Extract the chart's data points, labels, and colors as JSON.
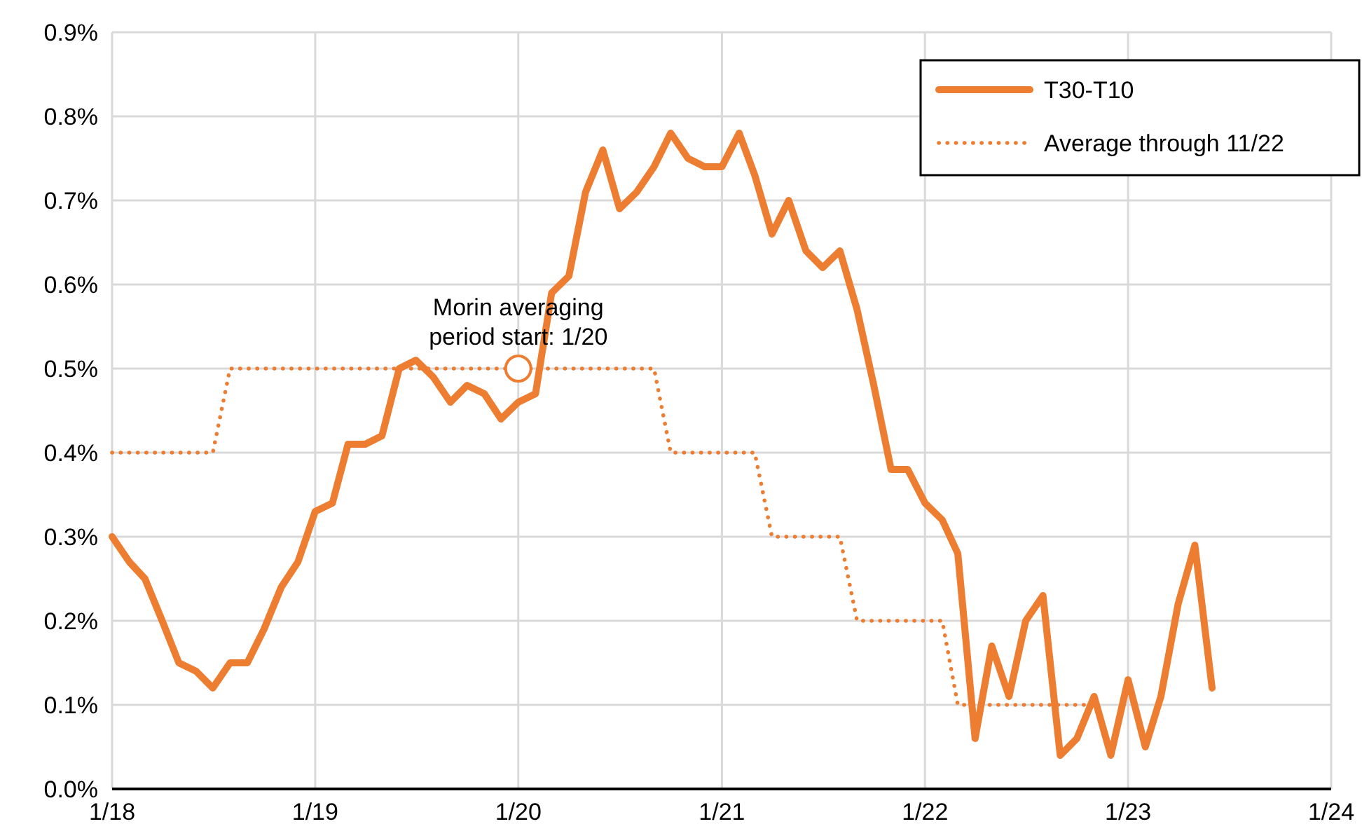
{
  "chart_data": {
    "type": "line",
    "x": [
      "2018-01",
      "2018-02",
      "2018-03",
      "2018-04",
      "2018-05",
      "2018-06",
      "2018-07",
      "2018-08",
      "2018-09",
      "2018-10",
      "2018-11",
      "2018-12",
      "2019-01",
      "2019-02",
      "2019-03",
      "2019-04",
      "2019-05",
      "2019-06",
      "2019-07",
      "2019-08",
      "2019-09",
      "2019-10",
      "2019-11",
      "2019-12",
      "2020-01",
      "2020-02",
      "2020-03",
      "2020-04",
      "2020-05",
      "2020-06",
      "2020-07",
      "2020-08",
      "2020-09",
      "2020-10",
      "2020-11",
      "2020-12",
      "2021-01",
      "2021-02",
      "2021-03",
      "2021-04",
      "2021-05",
      "2021-06",
      "2021-07",
      "2021-08",
      "2021-09",
      "2021-10",
      "2021-11",
      "2021-12",
      "2022-01",
      "2022-02",
      "2022-03",
      "2022-04",
      "2022-05",
      "2022-06",
      "2022-07",
      "2022-08",
      "2022-09",
      "2022-10",
      "2022-11",
      "2022-12",
      "2023-01",
      "2023-02",
      "2023-03",
      "2023-04",
      "2023-05",
      "2023-06"
    ],
    "series": [
      {
        "name": "T30-T10",
        "color": "#ed7d31",
        "line_style": "solid",
        "values": [
          0.3,
          0.27,
          0.25,
          0.2,
          0.15,
          0.14,
          0.12,
          0.15,
          0.15,
          0.19,
          0.24,
          0.27,
          0.33,
          0.34,
          0.41,
          0.41,
          0.42,
          0.5,
          0.51,
          0.49,
          0.46,
          0.48,
          0.47,
          0.44,
          0.46,
          0.47,
          0.59,
          0.61,
          0.71,
          0.76,
          0.69,
          0.71,
          0.74,
          0.78,
          0.75,
          0.74,
          0.74,
          0.78,
          0.73,
          0.66,
          0.7,
          0.64,
          0.62,
          0.64,
          0.57,
          0.48,
          0.38,
          0.38,
          0.34,
          0.32,
          0.28,
          0.06,
          0.17,
          0.11,
          0.2,
          0.23,
          0.04,
          0.06,
          0.11,
          0.04,
          0.13,
          0.05,
          0.11,
          0.22,
          0.29,
          0.12
        ]
      },
      {
        "name": "Average through 11/22",
        "color": "#ed7d31",
        "line_style": "dotted",
        "values": [
          0.4,
          0.4,
          0.4,
          0.4,
          0.4,
          0.4,
          0.4,
          0.5,
          0.5,
          0.5,
          0.5,
          0.5,
          0.5,
          0.5,
          0.5,
          0.5,
          0.5,
          0.5,
          0.5,
          0.5,
          0.5,
          0.5,
          0.5,
          0.5,
          0.5,
          0.5,
          0.5,
          0.5,
          0.5,
          0.5,
          0.5,
          0.5,
          0.5,
          0.4,
          0.4,
          0.4,
          0.4,
          0.4,
          0.4,
          0.3,
          0.3,
          0.3,
          0.3,
          0.3,
          0.2,
          0.2,
          0.2,
          0.2,
          0.2,
          0.2,
          0.1,
          0.1,
          0.1,
          0.1,
          0.1,
          0.1,
          0.1,
          0.1,
          0.1,
          null,
          null,
          null,
          null,
          null,
          null,
          null
        ]
      }
    ],
    "xlim": [
      "2018-01",
      "2024-01"
    ],
    "xticks": [
      {
        "value": "2018-01",
        "label": "1/18"
      },
      {
        "value": "2019-01",
        "label": "1/19"
      },
      {
        "value": "2020-01",
        "label": "1/20"
      },
      {
        "value": "2021-01",
        "label": "1/21"
      },
      {
        "value": "2022-01",
        "label": "1/22"
      },
      {
        "value": "2023-01",
        "label": "1/23"
      },
      {
        "value": "2024-01",
        "label": "1/24"
      }
    ],
    "ylim": [
      0,
      0.9
    ],
    "yticks": [
      {
        "value": 0,
        "label": "0.0%"
      },
      {
        "value": 0.1,
        "label": "0.1%"
      },
      {
        "value": 0.2,
        "label": "0.2%"
      },
      {
        "value": 0.3,
        "label": "0.3%"
      },
      {
        "value": 0.4,
        "label": "0.4%"
      },
      {
        "value": 0.5,
        "label": "0.5%"
      },
      {
        "value": 0.6,
        "label": "0.6%"
      },
      {
        "value": 0.7,
        "label": "0.7%"
      },
      {
        "value": 0.8,
        "label": "0.8%"
      },
      {
        "value": 0.9,
        "label": "0.9%"
      }
    ],
    "grid": true,
    "legend": "top right",
    "marker": "none",
    "annotations": [
      {
        "text": "Morin averaging period start: 1/20",
        "x": "2020-01",
        "y": 0.5
      }
    ]
  }
}
